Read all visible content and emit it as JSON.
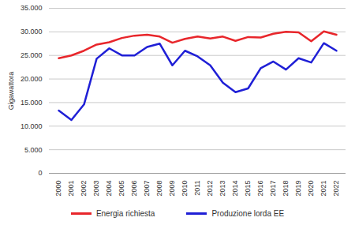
{
  "chart_data": {
    "type": "line",
    "y_label": "Gigawattora",
    "categories": [
      "2000",
      "2001",
      "2002",
      "2003",
      "2004",
      "2005",
      "2006",
      "2007",
      "2008",
      "2009",
      "2010",
      "2011",
      "2012",
      "2013",
      "2014",
      "2015",
      "2016",
      "2017",
      "2018",
      "2019",
      "2020",
      "2021",
      "2022"
    ],
    "series": [
      {
        "name": "Energia richiesta",
        "color": "#e8262b",
        "values": [
          24400,
          25000,
          26000,
          27300,
          27800,
          28700,
          29200,
          29400,
          29000,
          27700,
          28500,
          29000,
          28600,
          29000,
          28100,
          28900,
          28800,
          29600,
          30000,
          29900,
          28000,
          30100,
          29400
        ]
      },
      {
        "name": "Produzione lorda EE",
        "color": "#1f1fd6",
        "values": [
          13300,
          11300,
          14600,
          24300,
          26500,
          25000,
          25000,
          26800,
          27500,
          22900,
          26000,
          24800,
          22900,
          19200,
          17200,
          18000,
          22300,
          23700,
          22000,
          24400,
          23500,
          27600,
          26000
        ]
      }
    ],
    "ylim": [
      0,
      35000
    ],
    "yticks": [
      0,
      {
        "value": 5000,
        "label": "5.000"
      },
      {
        "value": 10000,
        "label": "10.000"
      },
      {
        "value": 15000,
        "label": "15.000"
      },
      {
        "value": 20000,
        "label": "20.000"
      },
      {
        "value": 25000,
        "label": "25.000"
      },
      {
        "value": 30000,
        "label": "30.000"
      },
      {
        "value": 35000,
        "label": "35.000"
      }
    ],
    "grid": true,
    "legend": "bottom"
  }
}
